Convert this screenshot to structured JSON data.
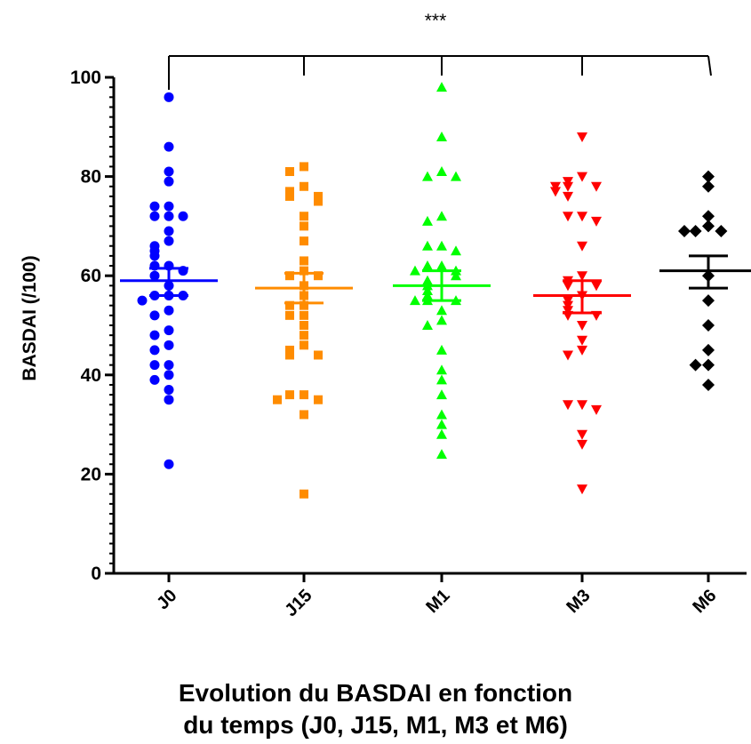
{
  "chart_data": {
    "type": "scatter",
    "ylabel": "BASDAI (/100)",
    "xlabel_lines": [
      "Evolution du BASDAI en fonction",
      "du temps (J0, J15, M1, M3 et M6)"
    ],
    "ylim": [
      0,
      100
    ],
    "yticks": [
      "0",
      "20",
      "40",
      "60",
      "80",
      "100"
    ],
    "categories": [
      "J0",
      "J15",
      "M1",
      "M3",
      "M6"
    ],
    "significance": "***",
    "grid": false,
    "series": [
      {
        "category": "J0",
        "marker": "circle",
        "color": "#0000ff",
        "mean": 59,
        "sem_low": 56,
        "sem_high": 61.5,
        "values": [
          96,
          86,
          81,
          79,
          74,
          74,
          72,
          72,
          72,
          69,
          67,
          66,
          65,
          64,
          62,
          62,
          61,
          60,
          58,
          56,
          56,
          56,
          55,
          53,
          52,
          49,
          48,
          46,
          45,
          42,
          42,
          40,
          39,
          37,
          35,
          22
        ]
      },
      {
        "category": "J15",
        "marker": "square",
        "color": "#ff8c00",
        "mean": 57.5,
        "sem_low": 54.5,
        "sem_high": 60.5,
        "values": [
          82,
          81,
          78,
          77,
          76,
          76,
          75,
          72,
          70,
          67,
          63,
          61,
          60,
          60,
          58,
          56,
          54,
          54,
          52,
          52,
          50,
          48,
          46,
          45,
          44,
          44,
          36,
          36,
          35,
          35,
          32,
          16
        ]
      },
      {
        "category": "M1",
        "marker": "triangle-up",
        "color": "#00ff00",
        "mean": 58,
        "sem_low": 55,
        "sem_high": 61,
        "values": [
          98,
          88,
          81,
          80,
          80,
          72,
          71,
          66,
          66,
          65,
          62,
          62,
          61,
          61,
          60,
          59,
          58,
          57,
          56,
          55,
          55,
          55,
          53,
          51,
          50,
          45,
          41,
          39,
          36,
          32,
          30,
          28,
          24
        ]
      },
      {
        "category": "M3",
        "marker": "triangle-down",
        "color": "#ff0000",
        "mean": 56,
        "sem_low": 52.5,
        "sem_high": 59,
        "values": [
          88,
          80,
          79,
          78,
          78,
          78,
          77,
          76,
          72,
          72,
          71,
          66,
          60,
          59,
          58,
          58,
          56,
          55,
          54,
          53,
          52,
          52,
          50,
          47,
          45,
          44,
          34,
          34,
          33,
          28,
          26,
          17
        ]
      },
      {
        "category": "M6",
        "marker": "diamond",
        "color": "#000000",
        "mean": 61,
        "sem_low": 57.5,
        "sem_high": 64,
        "values": [
          80,
          78,
          72,
          70,
          69,
          69,
          69,
          60,
          55,
          50,
          45,
          42,
          42,
          38
        ]
      }
    ]
  }
}
